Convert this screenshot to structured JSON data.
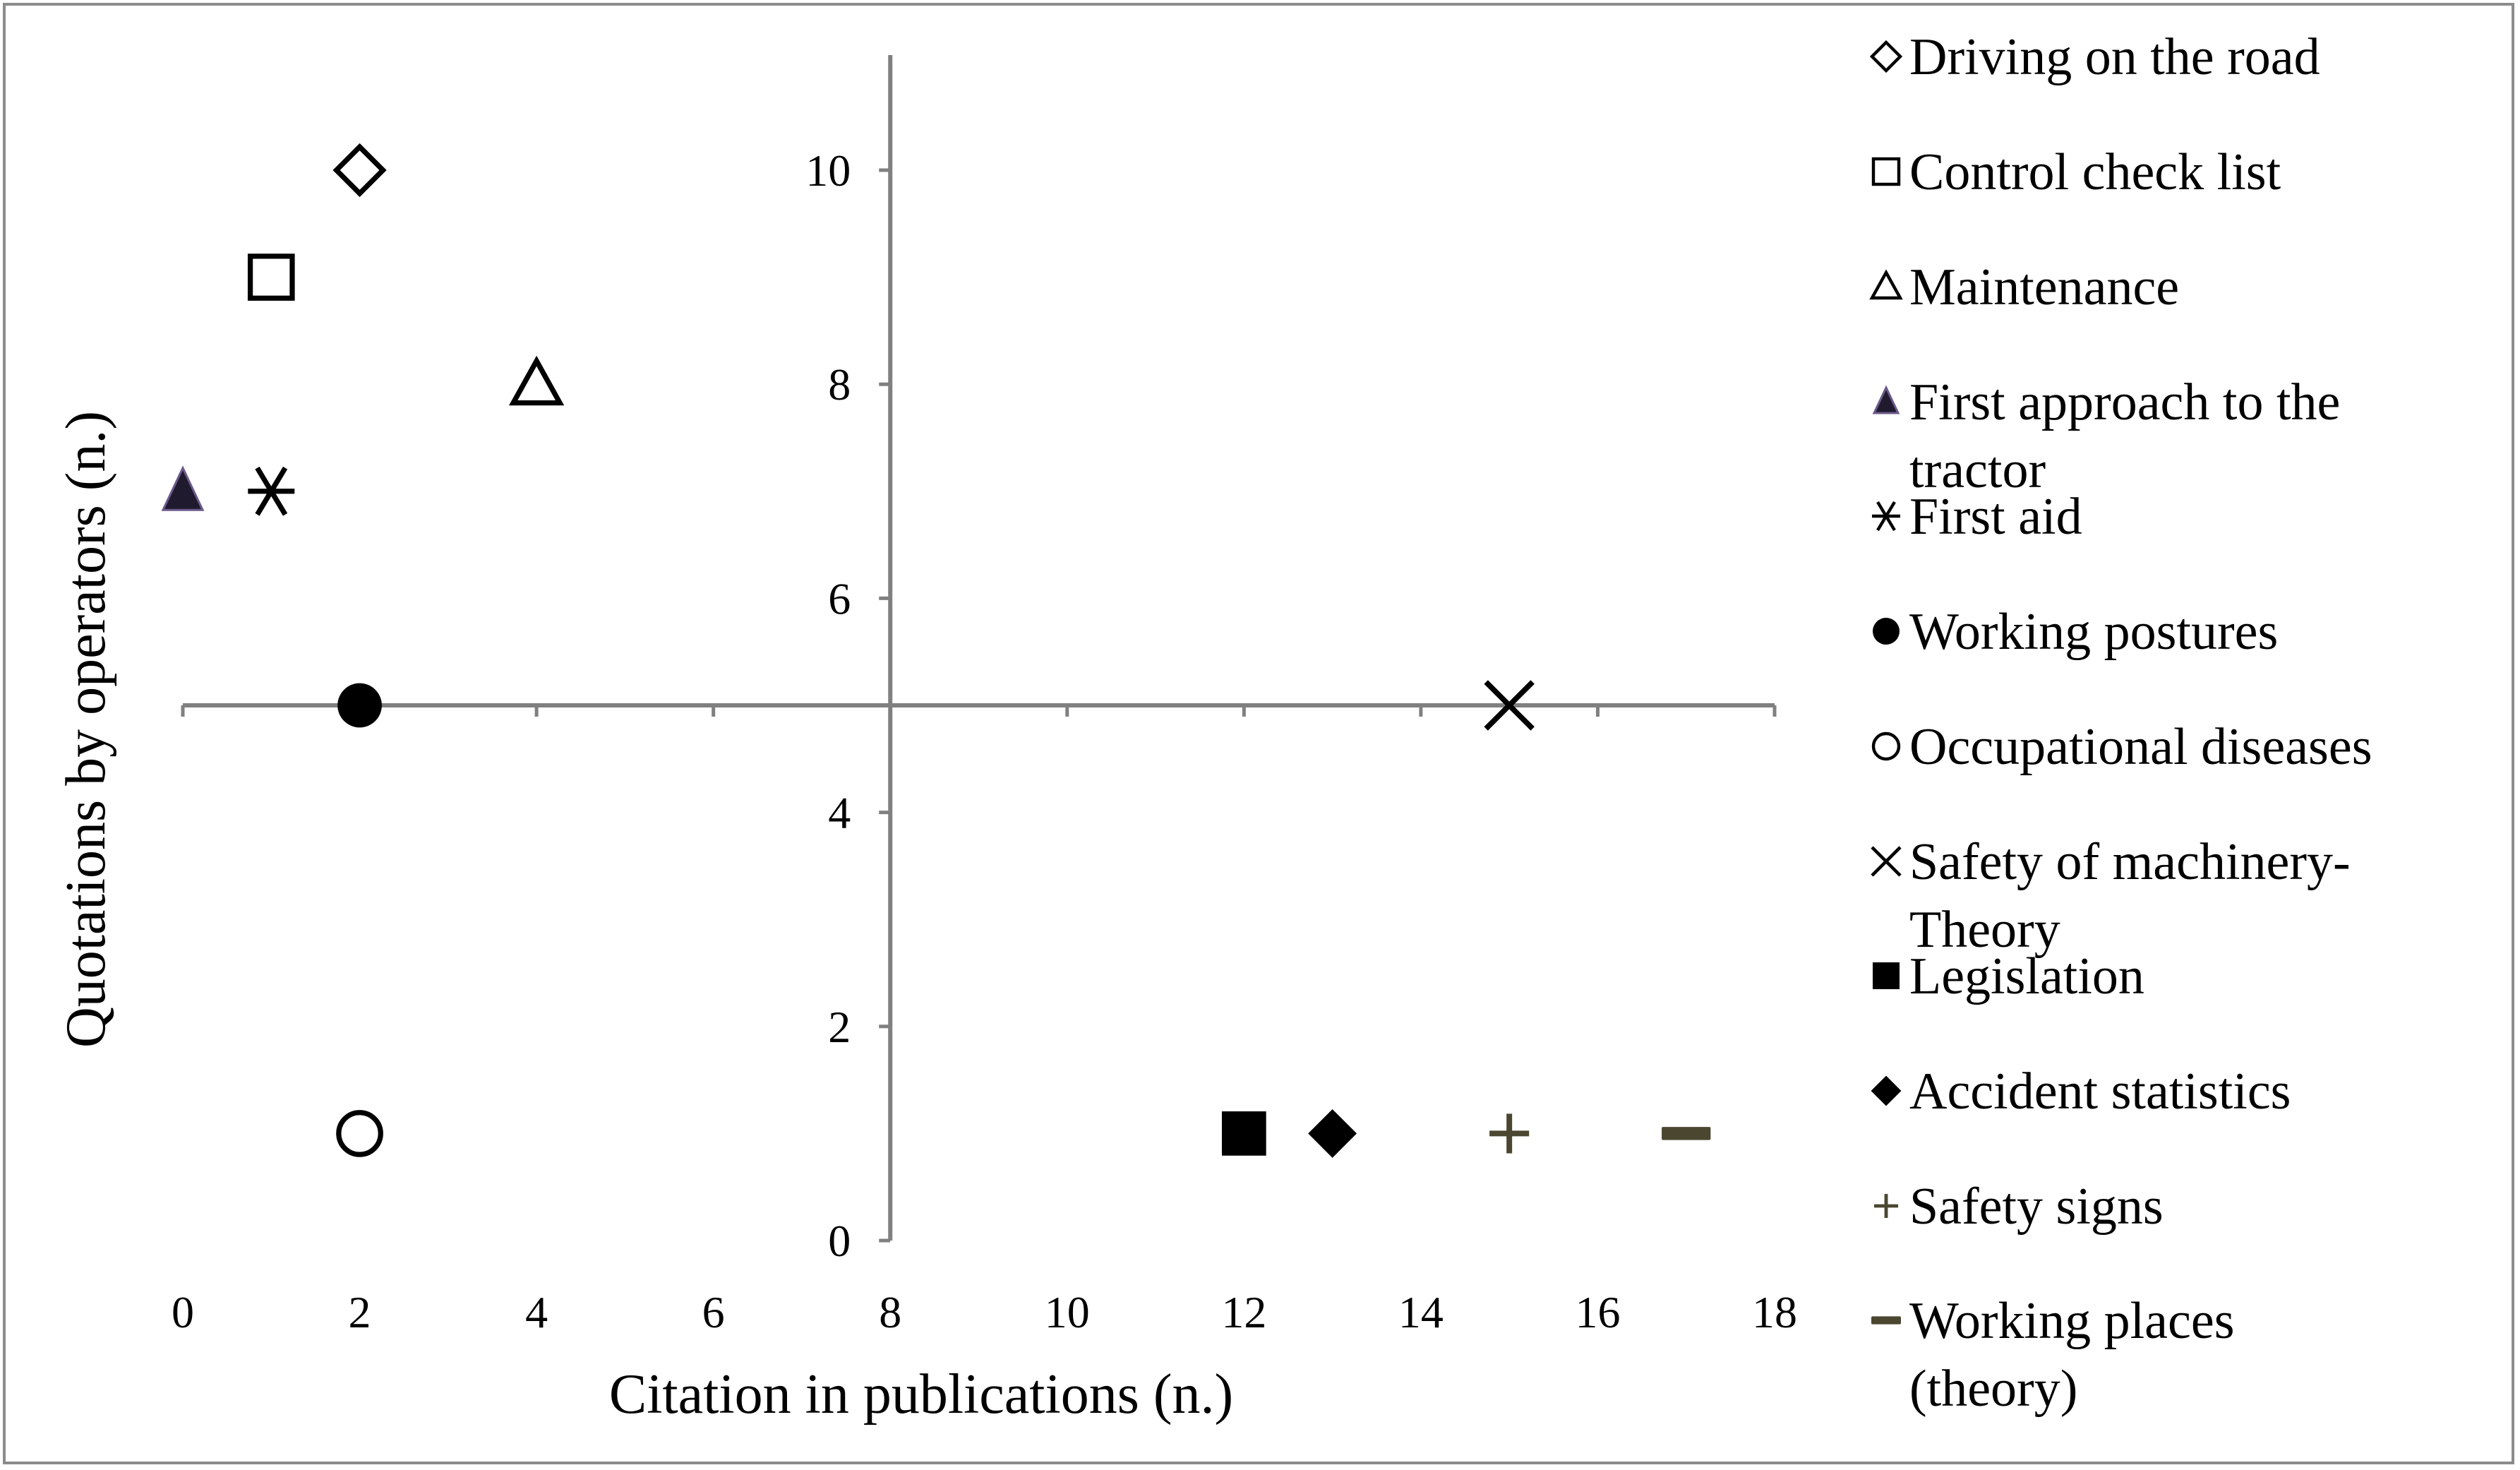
{
  "chart_data": {
    "type": "scatter",
    "title": "",
    "xlabel": "Citation in publications (n.)",
    "ylabel": "Quotations by operators (n.)",
    "xlim": [
      0,
      18
    ],
    "ylim": [
      0,
      11
    ],
    "x_ticks": [
      0,
      2,
      4,
      6,
      8,
      10,
      12,
      14,
      16,
      18
    ],
    "y_ticks": [
      0,
      2,
      4,
      6,
      8,
      10
    ],
    "axis_crossing": {
      "x_at": 8,
      "y_at": 5
    },
    "grid": false,
    "legend_position": "right",
    "series": [
      {
        "name": "Driving on the road",
        "marker": "diamond-open",
        "color": "#000000",
        "x": 2,
        "y": 10
      },
      {
        "name": "Control check list",
        "marker": "square-open",
        "color": "#000000",
        "x": 1,
        "y": 9
      },
      {
        "name": "Maintenance",
        "marker": "triangle-open",
        "color": "#000000",
        "x": 4,
        "y": 8
      },
      {
        "name": "First approach to the tractor",
        "marker": "triangle-filled",
        "color": "#1f1a2e",
        "x": 0,
        "y": 7
      },
      {
        "name": "First aid",
        "marker": "asterisk",
        "color": "#000000",
        "x": 1,
        "y": 7
      },
      {
        "name": "Working postures",
        "marker": "circle-filled",
        "color": "#000000",
        "x": 2,
        "y": 5
      },
      {
        "name": "Occupational diseases",
        "marker": "circle-open",
        "color": "#000000",
        "x": 2,
        "y": 1
      },
      {
        "name": "Safety of machinery-Theory",
        "marker": "x",
        "color": "#000000",
        "x": 15,
        "y": 5
      },
      {
        "name": "Legislation",
        "marker": "square-filled",
        "color": "#000000",
        "x": 12,
        "y": 1
      },
      {
        "name": "Accident statistics",
        "marker": "diamond-filled",
        "color": "#000000",
        "x": 13,
        "y": 1
      },
      {
        "name": "Safety signs",
        "marker": "plus",
        "color": "#4a4630",
        "x": 15,
        "y": 1
      },
      {
        "name": "Working places (theory)",
        "marker": "dash",
        "color": "#4a4630",
        "x": 17,
        "y": 1
      }
    ],
    "legend_lines": [
      [
        "Driving on the road"
      ],
      [
        "Control check list"
      ],
      [
        "Maintenance"
      ],
      [
        "First approach to the",
        "tractor"
      ],
      [
        "First aid"
      ],
      [
        "Working postures"
      ],
      [
        "Occupational diseases"
      ],
      [
        "Safety of machinery-",
        "Theory"
      ],
      [
        "Legislation"
      ],
      [
        "Accident statistics"
      ],
      [
        "Safety signs"
      ],
      [
        "Working places",
        "(theory)"
      ]
    ],
    "axis_color": "#808080"
  }
}
